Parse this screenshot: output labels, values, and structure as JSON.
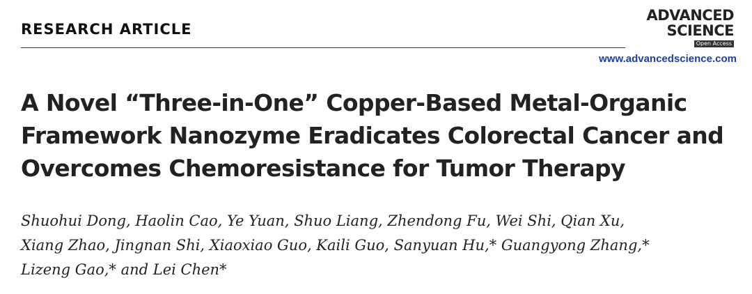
{
  "header": {
    "section": "RESEARCH ARTICLE",
    "journal_line1": "ADVANCED",
    "journal_line2": "SCIENCE",
    "open_access": "Open Access",
    "url": "www.advancedscience.com"
  },
  "title_lines": [
    "A Novel “Three-in-One” Copper-Based Metal-Organic",
    "Framework Nanozyme Eradicates Colorectal Cancer and",
    "Overcomes Chemoresistance for Tumor Therapy"
  ],
  "author_lines": [
    "Shuohui Dong, Haolin Cao, Ye Yuan, Shuo Liang, Zhendong Fu, Wei Shi, Qian Xu,",
    "Xiang Zhao, Jingnan Shi, Xiaoxiao Guo, Kaili Guo, Sanyuan Hu,* Guangyong Zhang,*",
    "Lizeng Gao,* and Lei Chen*"
  ]
}
